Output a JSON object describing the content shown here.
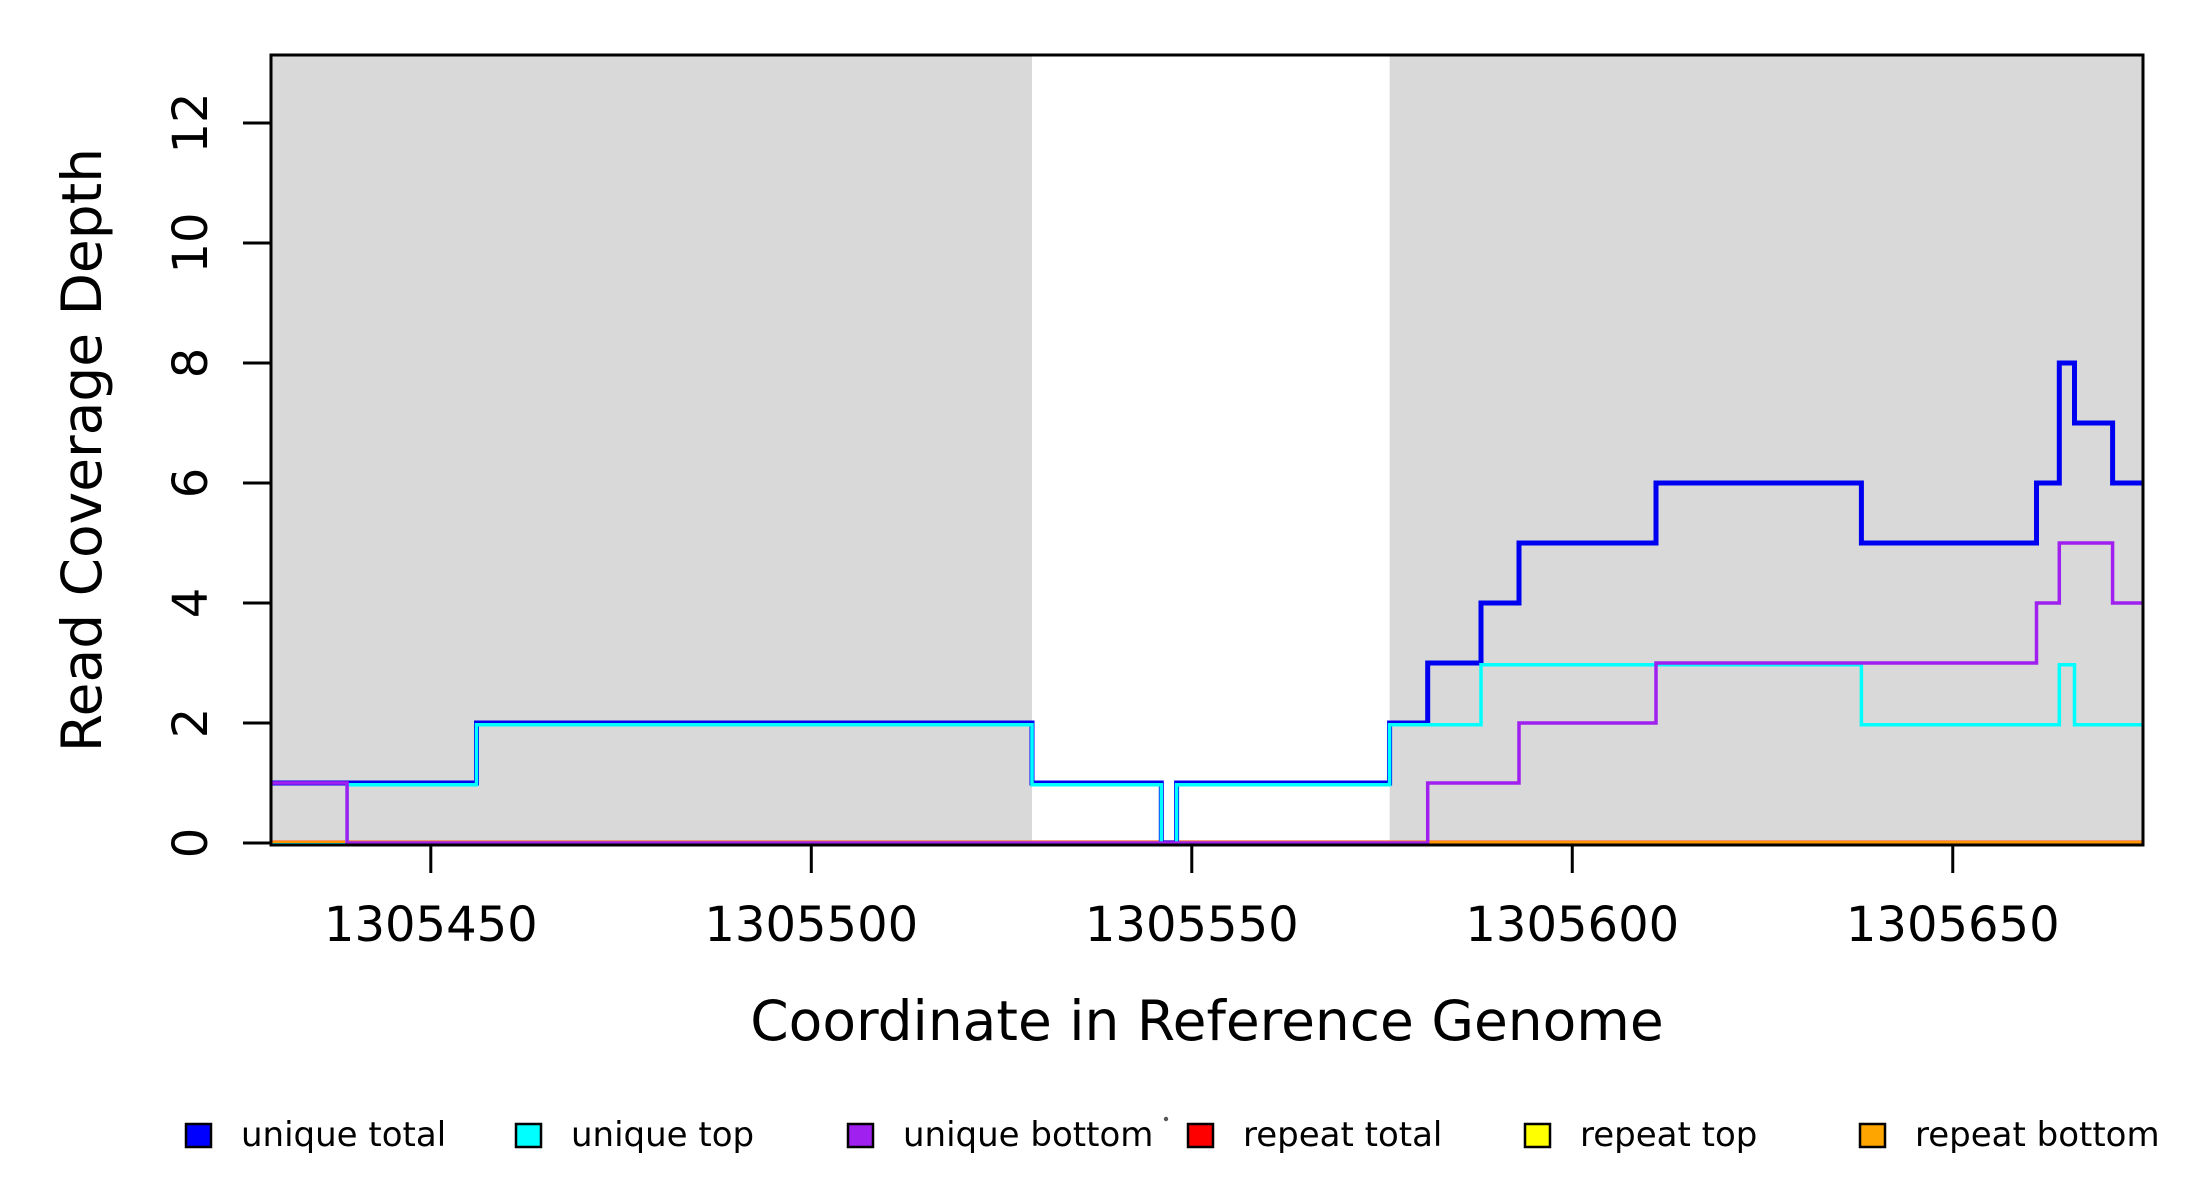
{
  "chart_data": {
    "type": "line",
    "subtype": "step",
    "title": "",
    "xlabel": "Coordinate in Reference Genome",
    "ylabel": "Read Coverage Depth",
    "xlim": [
      1305429,
      1305675
    ],
    "ylim": [
      0,
      13.1
    ],
    "x_ticks": [
      1305450,
      1305500,
      1305550,
      1305600,
      1305650
    ],
    "y_ticks": [
      0,
      2,
      4,
      6,
      8,
      10,
      12
    ],
    "grid": false,
    "plot_background": "#FFFFFF",
    "shaded_region_color": "#D9D9D9",
    "shaded_regions": [
      {
        "from": 1305429,
        "to": 1305529
      },
      {
        "from": 1305576,
        "to": 1305675
      }
    ],
    "x_end": 1305675,
    "legend_position": "bottom",
    "draw_order": [
      3,
      4,
      5,
      0,
      1,
      2
    ],
    "series": [
      {
        "name": "unique total",
        "color": "#0000FF",
        "line_color": "#0000F0",
        "width": 5,
        "steps": [
          [
            1305429,
            1
          ],
          [
            1305456,
            2
          ],
          [
            1305529,
            1
          ],
          [
            1305546,
            0
          ],
          [
            1305548,
            1
          ],
          [
            1305576,
            2
          ],
          [
            1305581,
            3
          ],
          [
            1305588,
            4
          ],
          [
            1305593,
            5
          ],
          [
            1305611,
            6
          ],
          [
            1305638,
            5
          ],
          [
            1305661,
            6
          ],
          [
            1305664,
            8
          ],
          [
            1305666,
            7
          ],
          [
            1305671,
            6
          ]
        ]
      },
      {
        "name": "unique top",
        "color": "#00FFFF",
        "line_color": "#00FFFF",
        "width": 3.5,
        "dy": 1.8,
        "steps": [
          [
            1305429,
            0
          ],
          [
            1305439,
            1
          ],
          [
            1305456,
            2
          ],
          [
            1305529,
            1
          ],
          [
            1305546,
            0
          ],
          [
            1305548,
            1
          ],
          [
            1305576,
            2
          ],
          [
            1305588,
            3
          ],
          [
            1305638,
            2
          ],
          [
            1305664,
            3
          ],
          [
            1305666,
            2
          ]
        ]
      },
      {
        "name": "unique bottom",
        "color": "#A020F0",
        "line_color": "#A020F0",
        "width": 3.5,
        "steps": [
          [
            1305429,
            1
          ],
          [
            1305439,
            0
          ],
          [
            1305581,
            1
          ],
          [
            1305593,
            2
          ],
          [
            1305611,
            3
          ],
          [
            1305661,
            4
          ],
          [
            1305664,
            5
          ],
          [
            1305671,
            4
          ]
        ]
      },
      {
        "name": "repeat total",
        "color": "#FF0000",
        "line_color": "#F07070",
        "width": 5.5,
        "steps": [
          [
            1305429,
            0
          ]
        ]
      },
      {
        "name": "repeat top",
        "color": "#FFFF00",
        "line_color": "#FFFF00",
        "width": 3,
        "steps": [
          [
            1305429,
            0
          ]
        ]
      },
      {
        "name": "repeat bottom",
        "color": "#FFA500",
        "line_color": "#FF9500",
        "width": 4.5,
        "steps": [
          [
            1305429,
            0
          ]
        ]
      }
    ]
  }
}
